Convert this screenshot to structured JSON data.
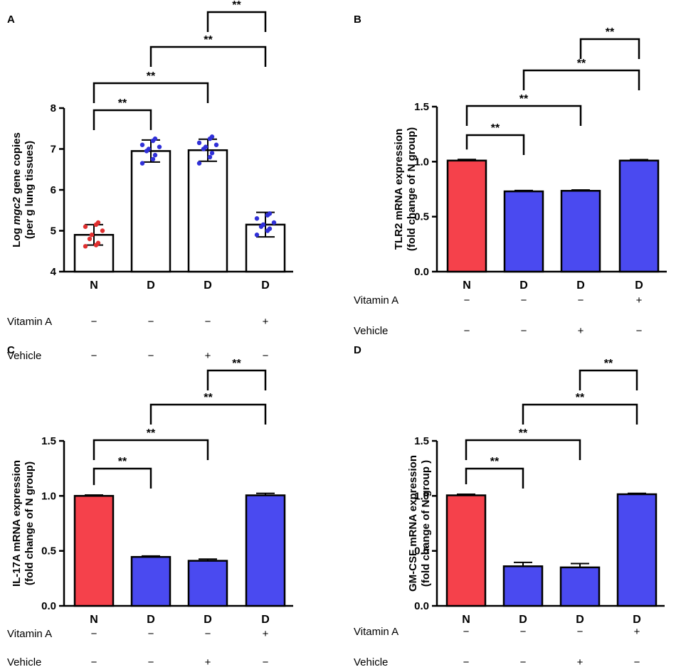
{
  "chart_data": [
    {
      "panel_label": "A",
      "type": "bar",
      "bar_style": "open",
      "ylabel_line1": "Log mgc2 gene copies",
      "ylabel_line1_parts": [
        "Log ",
        "mgc2",
        " gene copies"
      ],
      "ylabel_line2": "(per g lung tissues)",
      "ylim": [
        4,
        8
      ],
      "yticks": [
        "4",
        "5",
        "6",
        "7",
        "8"
      ],
      "ytick_values": [
        4,
        5,
        6,
        7,
        8
      ],
      "categories": [
        "N",
        "D",
        "D",
        "D"
      ],
      "values": [
        4.9,
        6.95,
        6.97,
        5.15
      ],
      "errors": [
        0.25,
        0.27,
        0.27,
        0.3
      ],
      "bar_colors": [
        "#ffffff",
        "#ffffff",
        "#ffffff",
        "#ffffff"
      ],
      "point_colors": [
        "#e03030",
        "#3030d8",
        "#3030d8",
        "#3030d8"
      ],
      "points": [
        [
          4.62,
          4.65,
          4.7,
          4.8,
          4.9,
          5.0,
          5.1,
          5.15,
          5.2
        ],
        [
          6.65,
          6.75,
          6.85,
          6.95,
          7.0,
          7.05,
          7.1,
          7.2,
          7.25
        ],
        [
          6.65,
          6.8,
          6.9,
          7.0,
          7.05,
          7.1,
          7.15,
          7.25,
          7.3
        ],
        [
          4.9,
          5.0,
          5.05,
          5.1,
          5.15,
          5.2,
          5.3,
          5.38,
          5.42
        ]
      ],
      "significance": [
        {
          "from": 0,
          "to": 1,
          "label": "**"
        },
        {
          "from": 0,
          "to": 2,
          "label": "**"
        },
        {
          "from": 1,
          "to": 3,
          "label": "**"
        },
        {
          "from": 2,
          "to": 3,
          "label": "**"
        }
      ],
      "treatment_rows": [
        {
          "label": "Vitamin A",
          "signs": [
            "−",
            "−",
            "−",
            "+"
          ]
        },
        {
          "label": "Vehicle",
          "signs": [
            "−",
            "−",
            "+",
            "−"
          ]
        }
      ]
    },
    {
      "panel_label": "B",
      "type": "bar",
      "bar_style": "filled",
      "ylabel_line1": "TLR2 mRNA expression",
      "ylabel_line2": "(fold change of N group)",
      "ylim": [
        0,
        1.5
      ],
      "yticks": [
        "0.0",
        "0.5",
        "1.0",
        "1.5"
      ],
      "ytick_values": [
        0,
        0.5,
        1.0,
        1.5
      ],
      "categories": [
        "N",
        "D",
        "D",
        "D"
      ],
      "values": [
        1.01,
        0.73,
        0.735,
        1.01
      ],
      "errors": [
        0.01,
        0.008,
        0.008,
        0.008
      ],
      "bar_colors": [
        "#f5414b",
        "#4a4af0",
        "#4a4af0",
        "#4a4af0"
      ],
      "significance": [
        {
          "from": 0,
          "to": 1,
          "label": "**"
        },
        {
          "from": 0,
          "to": 2,
          "label": "**"
        },
        {
          "from": 1,
          "to": 3,
          "label": "**"
        },
        {
          "from": 2,
          "to": 3,
          "label": "**"
        }
      ],
      "treatment_rows": [
        {
          "label": "Vitamin A",
          "signs": [
            "−",
            "−",
            "−",
            "+"
          ]
        },
        {
          "label": "Vehicle",
          "signs": [
            "−",
            "−",
            "+",
            "−"
          ]
        }
      ]
    },
    {
      "panel_label": "C",
      "type": "bar",
      "bar_style": "filled",
      "ylabel_line1": "IL-17A mRNA expression",
      "ylabel_line2": "(fold change of N group)",
      "ylim": [
        0,
        1.5
      ],
      "yticks": [
        "0.0",
        "0.5",
        "1.0",
        "1.5"
      ],
      "ytick_values": [
        0,
        0.5,
        1.0,
        1.5
      ],
      "categories": [
        "N",
        "D",
        "D",
        "D"
      ],
      "values": [
        1.0,
        0.445,
        0.41,
        1.005
      ],
      "errors": [
        0.008,
        0.008,
        0.015,
        0.018
      ],
      "bar_colors": [
        "#f5414b",
        "#4a4af0",
        "#4a4af0",
        "#4a4af0"
      ],
      "significance": [
        {
          "from": 0,
          "to": 1,
          "label": "**"
        },
        {
          "from": 0,
          "to": 2,
          "label": "**"
        },
        {
          "from": 1,
          "to": 3,
          "label": "**"
        },
        {
          "from": 2,
          "to": 3,
          "label": "**"
        }
      ],
      "treatment_rows": [
        {
          "label": "Vitamin A",
          "signs": [
            "−",
            "−",
            "−",
            "+"
          ]
        },
        {
          "label": "Vehicle",
          "signs": [
            "−",
            "−",
            "+",
            "−"
          ]
        }
      ]
    },
    {
      "panel_label": "D",
      "type": "bar",
      "bar_style": "filled",
      "ylabel_line1": "GM-CSF mRNA expression",
      "ylabel_line2": "(fold change of N group )",
      "ylim": [
        0,
        1.5
      ],
      "yticks": [
        "0.0",
        "0.5",
        "1.0",
        "1.5"
      ],
      "ytick_values": [
        0,
        0.5,
        1.0,
        1.5
      ],
      "categories": [
        "N",
        "D",
        "D",
        "D"
      ],
      "values": [
        1.005,
        0.36,
        0.35,
        1.015
      ],
      "errors": [
        0.01,
        0.035,
        0.035,
        0.008
      ],
      "bar_colors": [
        "#f5414b",
        "#4a4af0",
        "#4a4af0",
        "#4a4af0"
      ],
      "significance": [
        {
          "from": 0,
          "to": 1,
          "label": "**"
        },
        {
          "from": 0,
          "to": 2,
          "label": "**"
        },
        {
          "from": 1,
          "to": 3,
          "label": "**"
        },
        {
          "from": 2,
          "to": 3,
          "label": "**"
        }
      ],
      "treatment_rows": [
        {
          "label": "Vitamin A",
          "signs": [
            "−",
            "−",
            "−",
            "+"
          ]
        },
        {
          "label": "Vehicle",
          "signs": [
            "−",
            "−",
            "+",
            "−"
          ]
        }
      ]
    }
  ]
}
